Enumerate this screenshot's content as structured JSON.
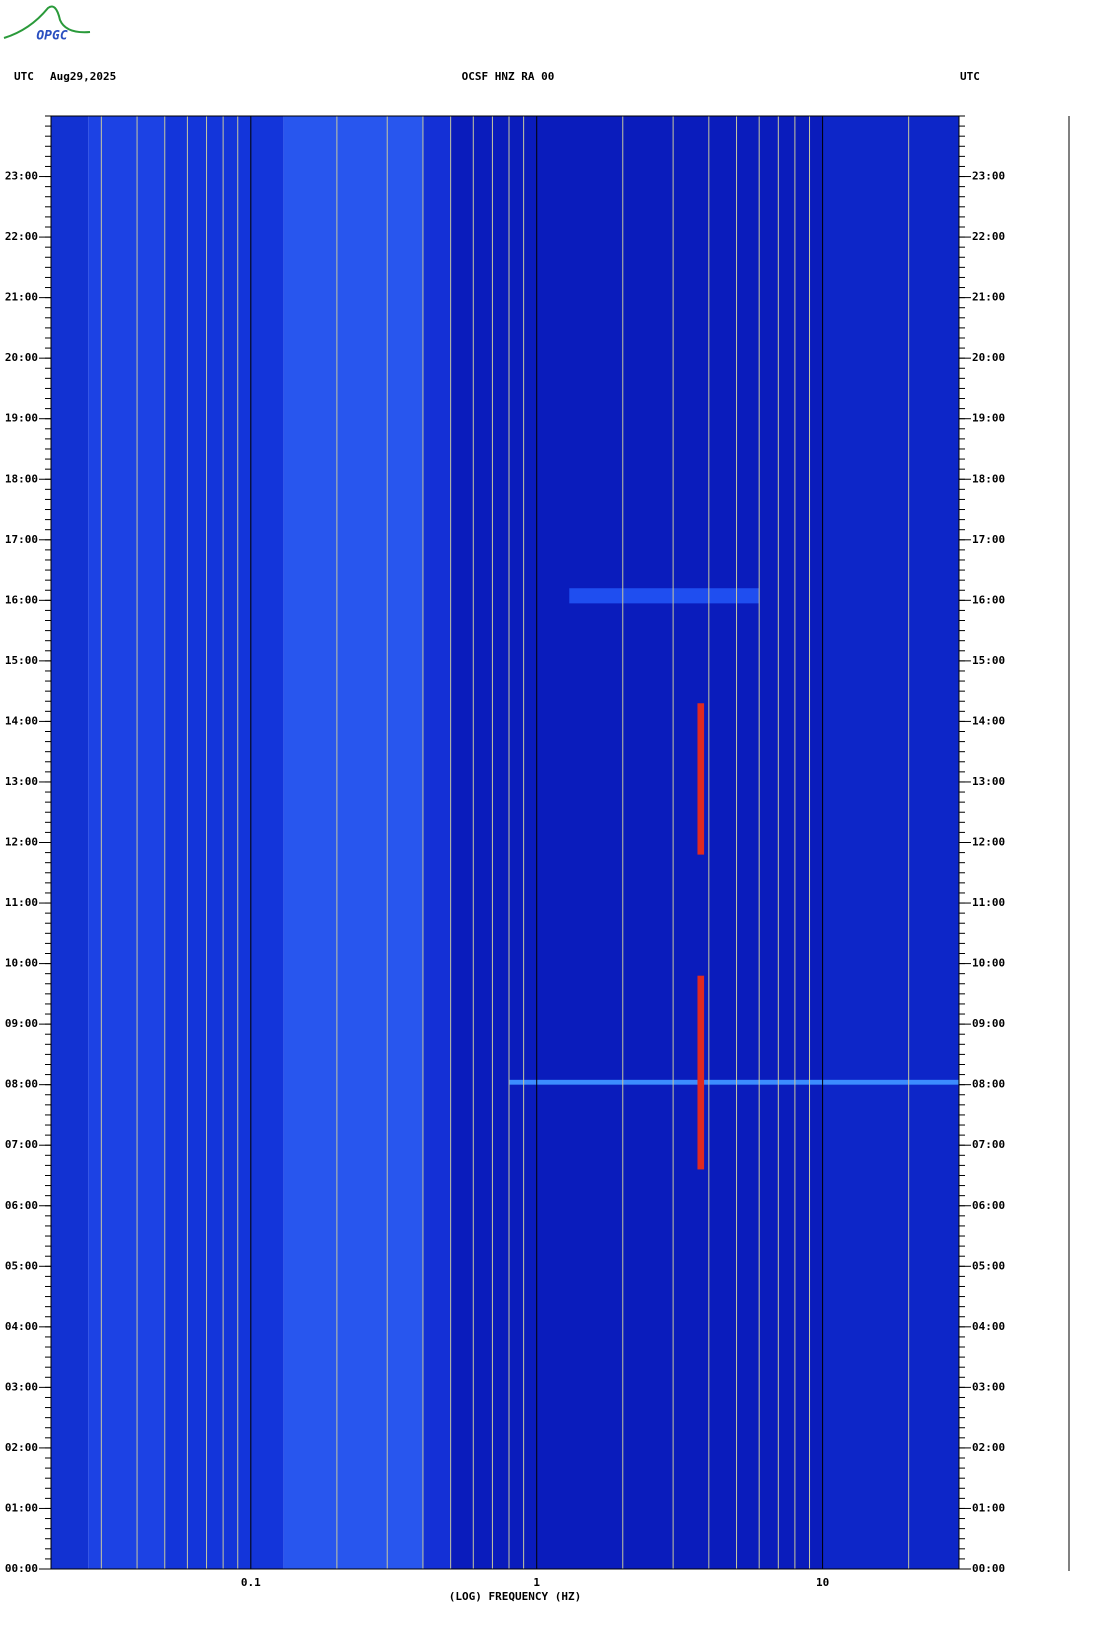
{
  "logo": "OPGC",
  "chart_data": {
    "type": "spectrogram",
    "title": "OCSF HNZ RA 00",
    "left_label": "UTC",
    "date": "Aug29,2025",
    "right_label": "UTC",
    "x_label": "(LOG) FREQUENCY (HZ)",
    "x_log": true,
    "xlim": [
      0.02,
      30
    ],
    "xticks": [
      0.1,
      1,
      10
    ],
    "xminor": [
      0.03,
      0.04,
      0.05,
      0.06,
      0.07,
      0.08,
      0.09,
      0.2,
      0.3,
      0.4,
      0.5,
      0.6,
      0.7,
      0.8,
      0.9,
      2,
      3,
      4,
      5,
      6,
      7,
      8,
      9,
      20
    ],
    "ylim": [
      0,
      24
    ],
    "yminor_per_hour": 6,
    "yticks": [
      {
        "value": 0,
        "label": "00:00"
      },
      {
        "value": 1,
        "label": "01:00"
      },
      {
        "value": 2,
        "label": "02:00"
      },
      {
        "value": 3,
        "label": "03:00"
      },
      {
        "value": 4,
        "label": "04:00"
      },
      {
        "value": 5,
        "label": "05:00"
      },
      {
        "value": 6,
        "label": "06:00"
      },
      {
        "value": 7,
        "label": "07:00"
      },
      {
        "value": 8,
        "label": "08:00"
      },
      {
        "value": 9,
        "label": "09:00"
      },
      {
        "value": 10,
        "label": "10:00"
      },
      {
        "value": 11,
        "label": "11:00"
      },
      {
        "value": 12,
        "label": "12:00"
      },
      {
        "value": 13,
        "label": "13:00"
      },
      {
        "value": 14,
        "label": "14:00"
      },
      {
        "value": 15,
        "label": "15:00"
      },
      {
        "value": 16,
        "label": "16:00"
      },
      {
        "value": 17,
        "label": "17:00"
      },
      {
        "value": 18,
        "label": "18:00"
      },
      {
        "value": 19,
        "label": "19:00"
      },
      {
        "value": 20,
        "label": "20:00"
      },
      {
        "value": 21,
        "label": "21:00"
      },
      {
        "value": 22,
        "label": "22:00"
      },
      {
        "value": 23,
        "label": "23:00"
      }
    ],
    "bands": [
      {
        "f": [
          0.02,
          0.027
        ],
        "color": "#1232d2"
      },
      {
        "f": [
          0.027,
          0.05
        ],
        "color": "#1c42e4"
      },
      {
        "f": [
          0.05,
          0.13
        ],
        "color": "#1335da"
      },
      {
        "f": [
          0.13,
          0.4
        ],
        "color": "#2856ee"
      },
      {
        "f": [
          0.4,
          0.5
        ],
        "color": "#1430d6"
      },
      {
        "f": [
          0.5,
          10
        ],
        "color": "#0a1cbc"
      },
      {
        "f": [
          10,
          30
        ],
        "color": "#0d26c8"
      }
    ],
    "events": [
      {
        "f": [
          0.8,
          30
        ],
        "t": [
          8.0,
          8.08
        ],
        "color": "#3c8cff"
      },
      {
        "f": [
          1.3,
          6
        ],
        "t": [
          15.95,
          16.2
        ],
        "color": "#1f4ef0"
      },
      {
        "f": [
          3.65,
          3.85
        ],
        "t": [
          11.8,
          14.3
        ],
        "color": "#e02a20"
      },
      {
        "f": [
          3.65,
          3.85
        ],
        "t": [
          6.6,
          9.8
        ],
        "color": "#e02a20"
      }
    ]
  }
}
